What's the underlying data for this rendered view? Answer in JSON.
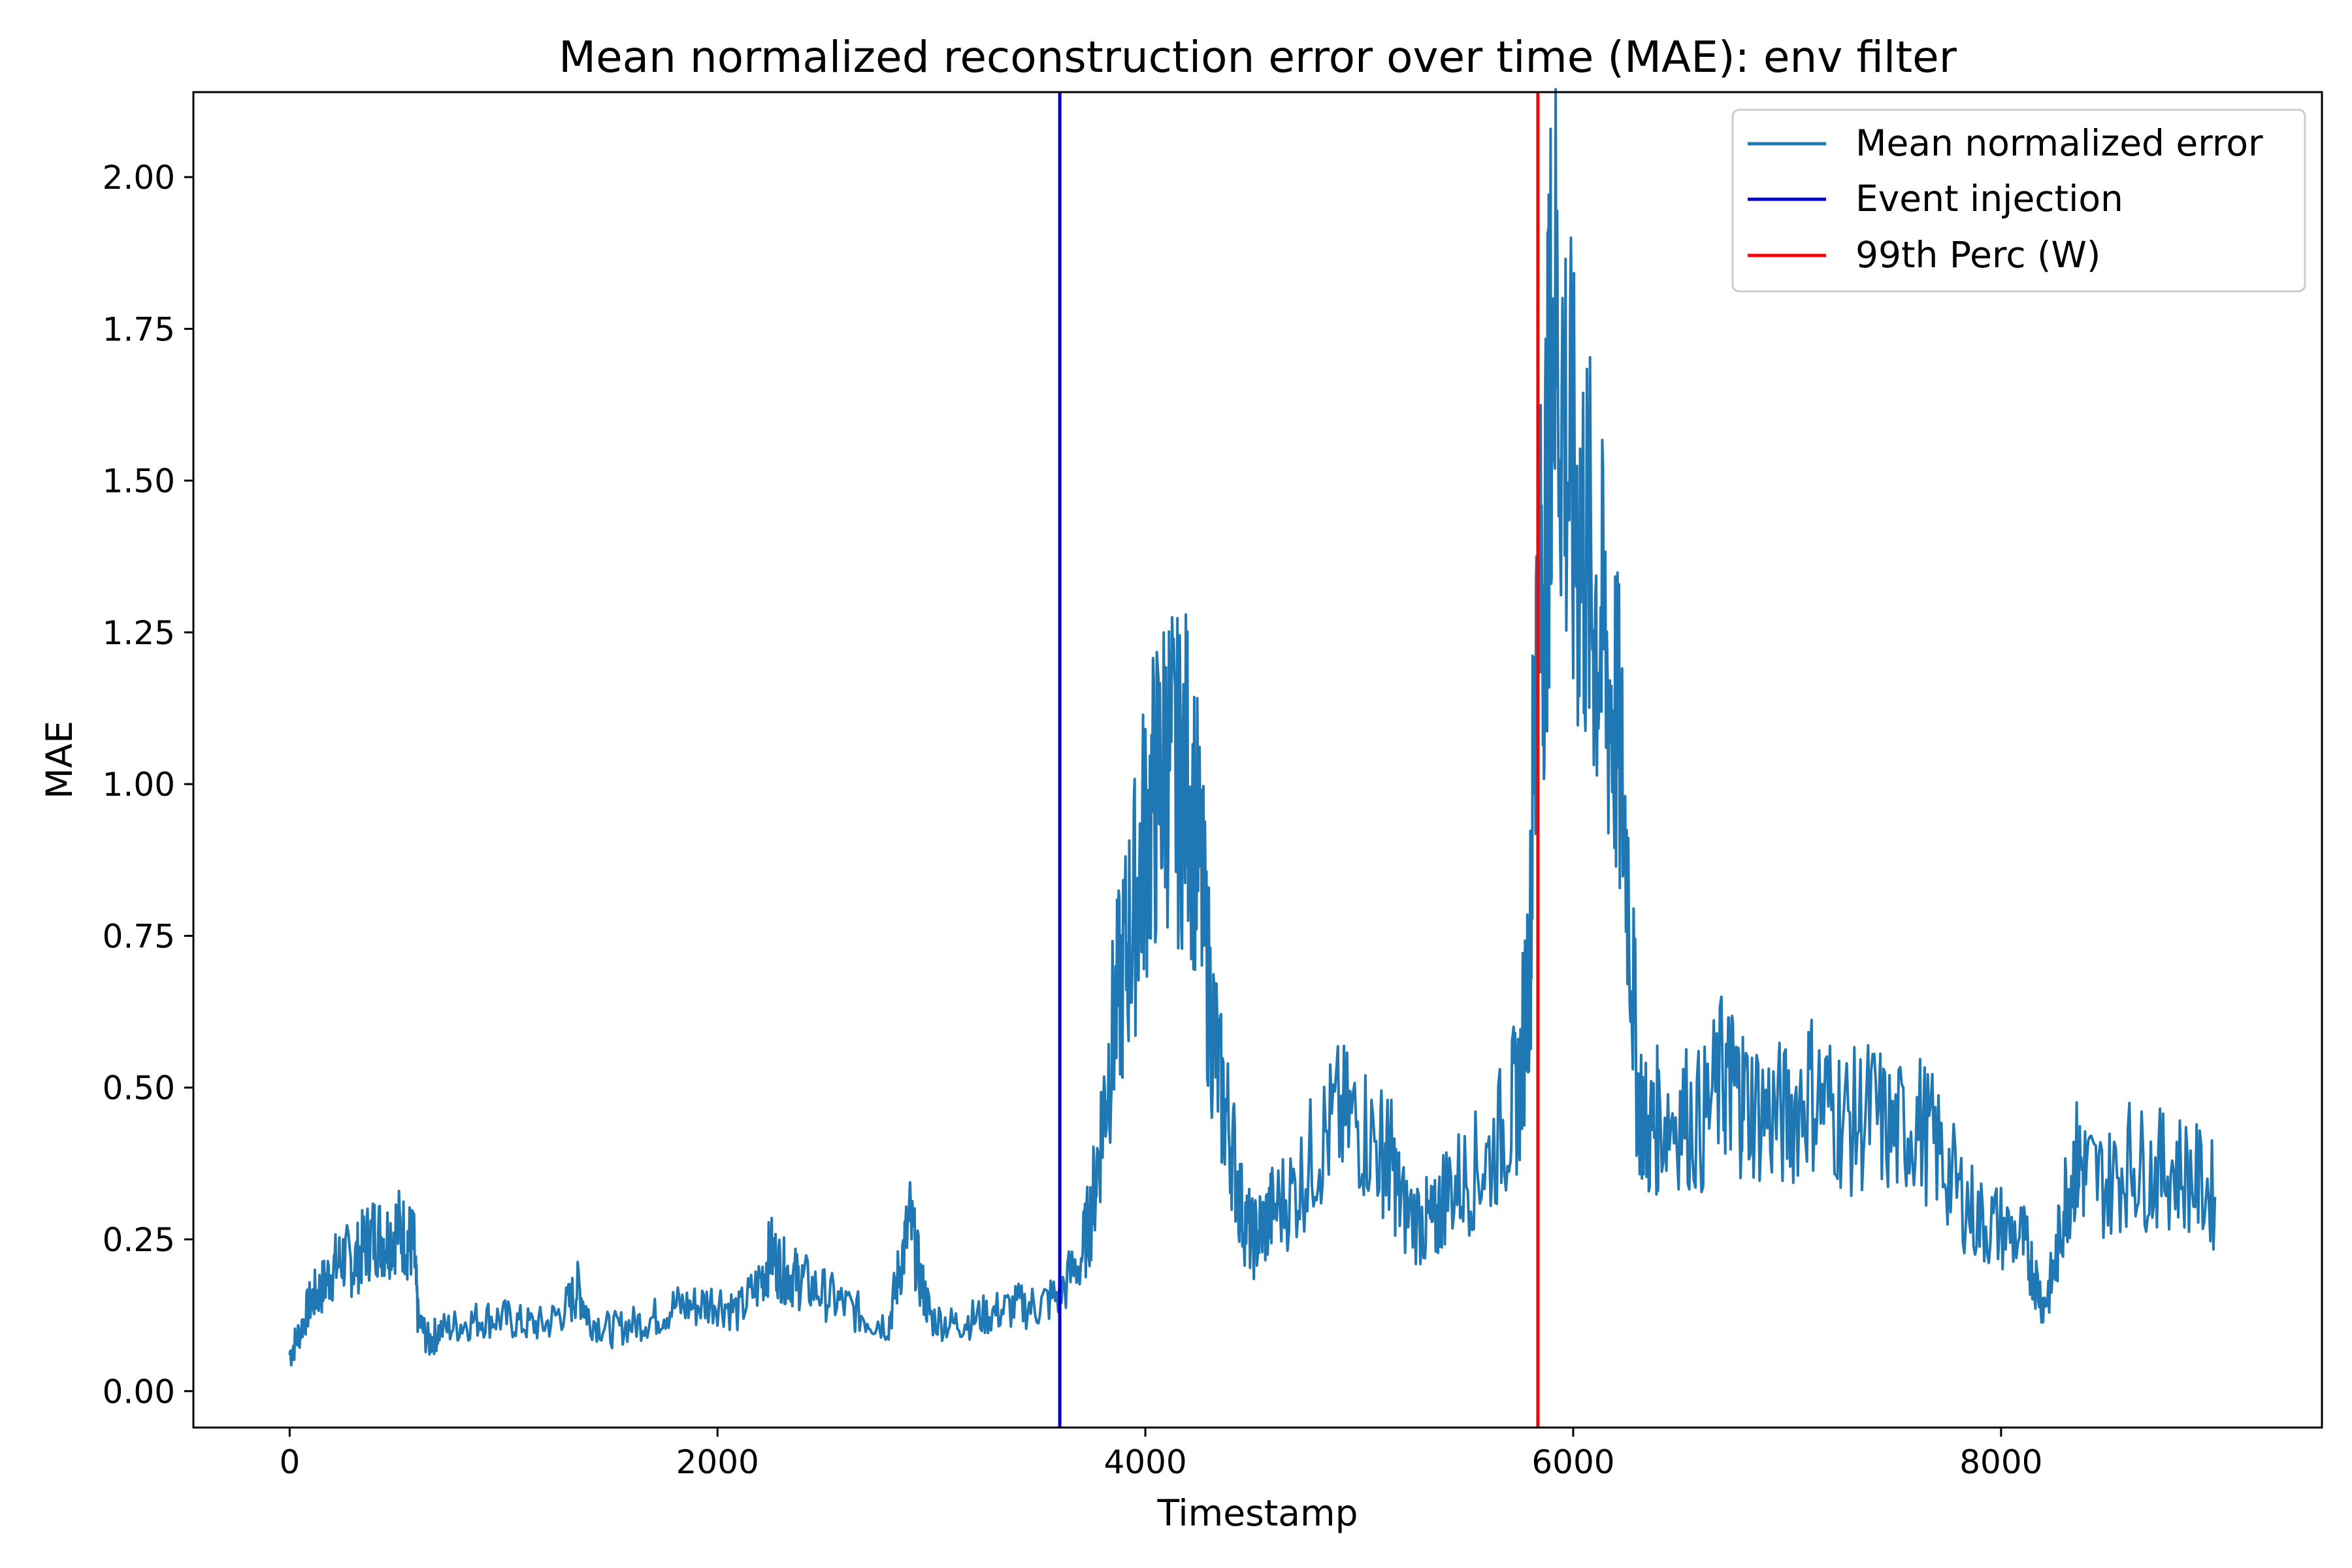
{
  "chart_data": {
    "type": "line",
    "title": "Mean normalized reconstruction error over time (MAE): env filter",
    "xlabel": "Timestamp",
    "ylabel": "MAE",
    "xlim": [
      -450,
      9500
    ],
    "ylim": [
      -0.06,
      2.14
    ],
    "xticks": [
      0,
      2000,
      4000,
      6000,
      8000
    ],
    "xtick_labels": [
      "0",
      "2000",
      "4000",
      "6000",
      "8000"
    ],
    "yticks": [
      0.0,
      0.25,
      0.5,
      0.75,
      1.0,
      1.25,
      1.5,
      1.75,
      2.0
    ],
    "ytick_labels": [
      "0.00",
      "0.25",
      "0.50",
      "0.75",
      "1.00",
      "1.25",
      "1.50",
      "1.75",
      "2.00"
    ],
    "grid": false,
    "legend_position": "top-right",
    "series": [
      {
        "name": "Mean normalized error",
        "color": "#1f77b4",
        "x": [
          0,
          50,
          100,
          150,
          200,
          250,
          300,
          350,
          400,
          450,
          500,
          550,
          580,
          600,
          650,
          700,
          800,
          900,
          1000,
          1100,
          1200,
          1300,
          1350,
          1400,
          1500,
          1600,
          1700,
          1800,
          1900,
          2000,
          2100,
          2200,
          2250,
          2300,
          2350,
          2400,
          2500,
          2600,
          2700,
          2800,
          2850,
          2900,
          2950,
          3000,
          3100,
          3200,
          3300,
          3400,
          3500,
          3600,
          3700,
          3750,
          3800,
          3850,
          3900,
          3950,
          4000,
          4050,
          4100,
          4150,
          4200,
          4250,
          4300,
          4350,
          4400,
          4450,
          4500,
          4550,
          4600,
          4700,
          4800,
          4900,
          5000,
          5100,
          5150,
          5200,
          5300,
          5350,
          5400,
          5500,
          5600,
          5700,
          5750,
          5800,
          5820,
          5850,
          5880,
          5900,
          5950,
          6000,
          6050,
          6100,
          6150,
          6200,
          6250,
          6300,
          6350,
          6400,
          6500,
          6600,
          6700,
          6750,
          6800,
          6900,
          7000,
          7100,
          7200,
          7300,
          7400,
          7500,
          7600,
          7700,
          7800,
          7900,
          8000,
          8100,
          8150,
          8200,
          8250,
          8300,
          8350,
          8400,
          8500,
          8600,
          8700,
          8800,
          8900,
          9000
        ],
        "values": [
          0.06,
          0.1,
          0.15,
          0.17,
          0.2,
          0.22,
          0.21,
          0.24,
          0.26,
          0.25,
          0.27,
          0.25,
          0.24,
          0.12,
          0.08,
          0.1,
          0.11,
          0.12,
          0.12,
          0.11,
          0.11,
          0.14,
          0.17,
          0.12,
          0.1,
          0.11,
          0.12,
          0.14,
          0.14,
          0.15,
          0.13,
          0.18,
          0.23,
          0.2,
          0.19,
          0.18,
          0.16,
          0.14,
          0.12,
          0.11,
          0.2,
          0.28,
          0.18,
          0.12,
          0.11,
          0.12,
          0.13,
          0.14,
          0.14,
          0.16,
          0.22,
          0.3,
          0.45,
          0.6,
          0.7,
          0.8,
          0.92,
          0.98,
          1.05,
          1.0,
          1.02,
          0.88,
          0.65,
          0.5,
          0.42,
          0.3,
          0.25,
          0.27,
          0.3,
          0.33,
          0.4,
          0.45,
          0.44,
          0.4,
          0.38,
          0.3,
          0.28,
          0.27,
          0.33,
          0.35,
          0.38,
          0.45,
          0.5,
          0.75,
          1.2,
          1.3,
          1.5,
          1.8,
          1.65,
          1.45,
          1.4,
          1.3,
          1.2,
          1.1,
          0.9,
          0.5,
          0.42,
          0.45,
          0.46,
          0.44,
          0.52,
          0.5,
          0.48,
          0.46,
          0.45,
          0.5,
          0.47,
          0.44,
          0.46,
          0.42,
          0.45,
          0.4,
          0.33,
          0.28,
          0.27,
          0.25,
          0.2,
          0.14,
          0.2,
          0.32,
          0.38,
          0.36,
          0.34,
          0.38,
          0.36,
          0.37,
          0.35,
          0.32
        ]
      },
      {
        "name": "Event injection",
        "color": "#0000cd",
        "type": "vline",
        "x": 3600
      },
      {
        "name": "99th Perc (W)",
        "color": "#ff0000",
        "type": "vline",
        "x": 5835
      }
    ]
  }
}
